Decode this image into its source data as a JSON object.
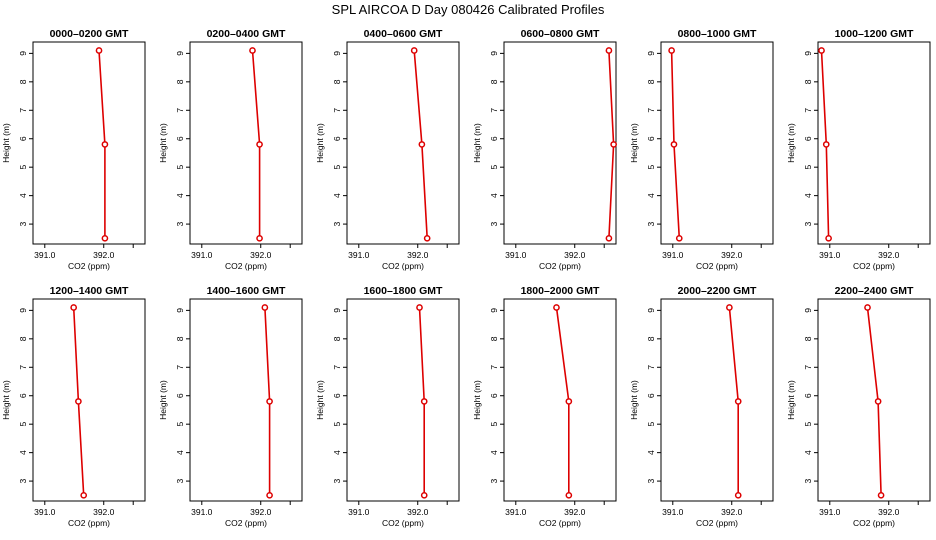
{
  "title": "SPL AIRCOA D  Day 080426  Calibrated Profiles",
  "colors": {
    "series": "#dd0000",
    "axis": "#000000",
    "background": "#ffffff"
  },
  "chart_data": [
    {
      "type": "line",
      "title": "0000–0200 GMT",
      "xlabel": "CO2 (ppm)",
      "ylabel": "Height (m)",
      "xlim": [
        390.8,
        392.7
      ],
      "ylim": [
        2.3,
        9.4
      ],
      "xticks": [
        391.0,
        392.0
      ],
      "xtick_labels": [
        "391.0",
        "392.0"
      ],
      "yticks": [
        3,
        4,
        5,
        6,
        7,
        8,
        9
      ],
      "ytick_labels": [
        "3",
        "4",
        "5",
        "6",
        "7",
        "8",
        "9"
      ],
      "points": [
        {
          "x": 391.92,
          "y": 9.1
        },
        {
          "x": 392.02,
          "y": 5.8
        },
        {
          "x": 392.02,
          "y": 2.5
        }
      ]
    },
    {
      "type": "line",
      "title": "0200–0400 GMT",
      "xlabel": "CO2 (ppm)",
      "ylabel": "Height (m)",
      "xlim": [
        390.8,
        392.7
      ],
      "ylim": [
        2.3,
        9.4
      ],
      "xticks": [
        391.0,
        392.0
      ],
      "xtick_labels": [
        "391.0",
        "392.0"
      ],
      "yticks": [
        3,
        4,
        5,
        6,
        7,
        8,
        9
      ],
      "ytick_labels": [
        "3",
        "4",
        "5",
        "6",
        "7",
        "8",
        "9"
      ],
      "points": [
        {
          "x": 391.86,
          "y": 9.1
        },
        {
          "x": 391.98,
          "y": 5.8
        },
        {
          "x": 391.98,
          "y": 2.5
        }
      ]
    },
    {
      "type": "line",
      "title": "0400–0600 GMT",
      "xlabel": "CO2 (ppm)",
      "ylabel": "Height (m)",
      "xlim": [
        390.8,
        392.7
      ],
      "ylim": [
        2.3,
        9.4
      ],
      "xticks": [
        391.0,
        392.0
      ],
      "xtick_labels": [
        "391.0",
        "392.0"
      ],
      "yticks": [
        3,
        4,
        5,
        6,
        7,
        8,
        9
      ],
      "ytick_labels": [
        "3",
        "4",
        "5",
        "6",
        "7",
        "8",
        "9"
      ],
      "points": [
        {
          "x": 391.94,
          "y": 9.1
        },
        {
          "x": 392.07,
          "y": 5.8
        },
        {
          "x": 392.16,
          "y": 2.5
        }
      ]
    },
    {
      "type": "line",
      "title": "0600–0800 GMT",
      "xlabel": "CO2 (ppm)",
      "ylabel": "Height (m)",
      "xlim": [
        390.8,
        392.7
      ],
      "ylim": [
        2.3,
        9.4
      ],
      "xticks": [
        391.0,
        392.0
      ],
      "xtick_labels": [
        "391.0",
        "392.0"
      ],
      "yticks": [
        3,
        4,
        5,
        6,
        7,
        8,
        9
      ],
      "ytick_labels": [
        "3",
        "4",
        "5",
        "6",
        "7",
        "8",
        "9"
      ],
      "points": [
        {
          "x": 392.58,
          "y": 9.1
        },
        {
          "x": 392.66,
          "y": 5.8
        },
        {
          "x": 392.58,
          "y": 2.5
        }
      ]
    },
    {
      "type": "line",
      "title": "0800–1000 GMT",
      "xlabel": "CO2 (ppm)",
      "ylabel": "Height (m)",
      "xlim": [
        390.8,
        392.7
      ],
      "ylim": [
        2.3,
        9.4
      ],
      "xticks": [
        391.0,
        392.0
      ],
      "xtick_labels": [
        "391.0",
        "392.0"
      ],
      "yticks": [
        3,
        4,
        5,
        6,
        7,
        8,
        9
      ],
      "ytick_labels": [
        "3",
        "4",
        "5",
        "6",
        "7",
        "8",
        "9"
      ],
      "points": [
        {
          "x": 390.98,
          "y": 9.1
        },
        {
          "x": 391.02,
          "y": 5.8
        },
        {
          "x": 391.11,
          "y": 2.5
        }
      ]
    },
    {
      "type": "line",
      "title": "1000–1200 GMT",
      "xlabel": "CO2 (ppm)",
      "ylabel": "Height (m)",
      "xlim": [
        390.8,
        392.7
      ],
      "ylim": [
        2.3,
        9.4
      ],
      "xticks": [
        391.0,
        392.0
      ],
      "xtick_labels": [
        "391.0",
        "392.0"
      ],
      "yticks": [
        3,
        4,
        5,
        6,
        7,
        8,
        9
      ],
      "ytick_labels": [
        "3",
        "4",
        "5",
        "6",
        "7",
        "8",
        "9"
      ],
      "points": [
        {
          "x": 390.86,
          "y": 9.1
        },
        {
          "x": 390.94,
          "y": 5.8
        },
        {
          "x": 390.98,
          "y": 2.5
        }
      ]
    },
    {
      "type": "line",
      "title": "1200–1400 GMT",
      "xlabel": "CO2 (ppm)",
      "ylabel": "Height (m)",
      "xlim": [
        390.8,
        392.7
      ],
      "ylim": [
        2.3,
        9.4
      ],
      "xticks": [
        391.0,
        392.0
      ],
      "xtick_labels": [
        "391.0",
        "392.0"
      ],
      "yticks": [
        3,
        4,
        5,
        6,
        7,
        8,
        9
      ],
      "ytick_labels": [
        "3",
        "4",
        "5",
        "6",
        "7",
        "8",
        "9"
      ],
      "points": [
        {
          "x": 391.49,
          "y": 9.1
        },
        {
          "x": 391.57,
          "y": 5.8
        },
        {
          "x": 391.66,
          "y": 2.5
        }
      ]
    },
    {
      "type": "line",
      "title": "1400–1600 GMT",
      "xlabel": "CO2 (ppm)",
      "ylabel": "Height (m)",
      "xlim": [
        390.8,
        392.7
      ],
      "ylim": [
        2.3,
        9.4
      ],
      "xticks": [
        391.0,
        392.0
      ],
      "xtick_labels": [
        "391.0",
        "392.0"
      ],
      "yticks": [
        3,
        4,
        5,
        6,
        7,
        8,
        9
      ],
      "ytick_labels": [
        "3",
        "4",
        "5",
        "6",
        "7",
        "8",
        "9"
      ],
      "points": [
        {
          "x": 392.07,
          "y": 9.1
        },
        {
          "x": 392.15,
          "y": 5.8
        },
        {
          "x": 392.15,
          "y": 2.5
        }
      ]
    },
    {
      "type": "line",
      "title": "1600–1800 GMT",
      "xlabel": "CO2 (ppm)",
      "ylabel": "Height (m)",
      "xlim": [
        390.8,
        392.7
      ],
      "ylim": [
        2.3,
        9.4
      ],
      "xticks": [
        391.0,
        392.0
      ],
      "xtick_labels": [
        "391.0",
        "392.0"
      ],
      "yticks": [
        3,
        4,
        5,
        6,
        7,
        8,
        9
      ],
      "ytick_labels": [
        "3",
        "4",
        "5",
        "6",
        "7",
        "8",
        "9"
      ],
      "points": [
        {
          "x": 392.03,
          "y": 9.1
        },
        {
          "x": 392.11,
          "y": 5.8
        },
        {
          "x": 392.11,
          "y": 2.5
        }
      ]
    },
    {
      "type": "line",
      "title": "1800–2000 GMT",
      "xlabel": "CO2 (ppm)",
      "ylabel": "Height (m)",
      "xlim": [
        390.8,
        392.7
      ],
      "ylim": [
        2.3,
        9.4
      ],
      "xticks": [
        391.0,
        392.0
      ],
      "xtick_labels": [
        "391.0",
        "392.0"
      ],
      "yticks": [
        3,
        4,
        5,
        6,
        7,
        8,
        9
      ],
      "ytick_labels": [
        "3",
        "4",
        "5",
        "6",
        "7",
        "8",
        "9"
      ],
      "points": [
        {
          "x": 391.69,
          "y": 9.1
        },
        {
          "x": 391.9,
          "y": 5.8
        },
        {
          "x": 391.9,
          "y": 2.5
        }
      ]
    },
    {
      "type": "line",
      "title": "2000–2200 GMT",
      "xlabel": "CO2 (ppm)",
      "ylabel": "Height (m)",
      "xlim": [
        390.8,
        392.7
      ],
      "ylim": [
        2.3,
        9.4
      ],
      "xticks": [
        391.0,
        392.0
      ],
      "xtick_labels": [
        "391.0",
        "392.0"
      ],
      "yticks": [
        3,
        4,
        5,
        6,
        7,
        8,
        9
      ],
      "ytick_labels": [
        "3",
        "4",
        "5",
        "6",
        "7",
        "8",
        "9"
      ],
      "points": [
        {
          "x": 391.96,
          "y": 9.1
        },
        {
          "x": 392.11,
          "y": 5.8
        },
        {
          "x": 392.11,
          "y": 2.5
        }
      ]
    },
    {
      "type": "line",
      "title": "2200–2400 GMT",
      "xlabel": "CO2 (ppm)",
      "ylabel": "Height (m)",
      "xlim": [
        390.8,
        392.7
      ],
      "ylim": [
        2.3,
        9.4
      ],
      "xticks": [
        391.0,
        392.0
      ],
      "xtick_labels": [
        "391.0",
        "392.0"
      ],
      "yticks": [
        3,
        4,
        5,
        6,
        7,
        8,
        9
      ],
      "ytick_labels": [
        "3",
        "4",
        "5",
        "6",
        "7",
        "8",
        "9"
      ],
      "points": [
        {
          "x": 391.64,
          "y": 9.1
        },
        {
          "x": 391.82,
          "y": 5.8
        },
        {
          "x": 391.87,
          "y": 2.5
        }
      ]
    }
  ]
}
